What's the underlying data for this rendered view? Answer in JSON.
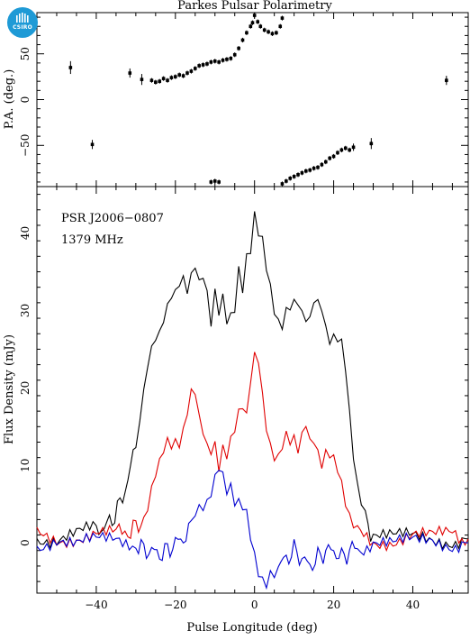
{
  "header": {
    "title": "Parkes Pulsar Polarimetry",
    "logo_text": "CSIRO"
  },
  "colors": {
    "total": "#000000",
    "linear": "#e00000",
    "circular": "#0000d0",
    "logo": "#1e9ad6"
  },
  "chart_data": [
    {
      "type": "scatter",
      "name_role": "position-angle panel",
      "xlabel": "",
      "ylabel": "P.A. (deg.)",
      "xlim": [
        -55,
        54
      ],
      "ylim": [
        -95,
        95
      ],
      "yticks": [
        -50,
        0,
        50
      ],
      "points": [
        [
          -46.5,
          35
        ],
        [
          -41,
          -49
        ],
        [
          -31.5,
          29
        ],
        [
          -28.5,
          22
        ],
        [
          -26,
          21
        ],
        [
          -25,
          19
        ],
        [
          -24,
          20
        ],
        [
          -23,
          23
        ],
        [
          -22,
          21
        ],
        [
          -21,
          24
        ],
        [
          -20,
          25
        ],
        [
          -19,
          27
        ],
        [
          -18,
          26
        ],
        [
          -17,
          29
        ],
        [
          -16,
          31
        ],
        [
          -15,
          34
        ],
        [
          -14,
          37
        ],
        [
          -13,
          38
        ],
        [
          -12,
          39
        ],
        [
          -11,
          41
        ],
        [
          -10,
          42
        ],
        [
          -9,
          41
        ],
        [
          -8,
          43
        ],
        [
          -7,
          44
        ],
        [
          -6,
          45
        ],
        [
          -5,
          49
        ],
        [
          -4,
          56
        ],
        [
          -3,
          65
        ],
        [
          -2,
          73
        ],
        [
          -1,
          80
        ],
        [
          -0.5,
          84
        ],
        [
          0,
          92
        ],
        [
          0.8,
          85
        ],
        [
          1.5,
          80
        ],
        [
          2.5,
          76
        ],
        [
          3.5,
          74
        ],
        [
          4.5,
          72
        ],
        [
          5.5,
          73
        ],
        [
          6.5,
          80
        ],
        [
          7,
          89
        ],
        [
          -11,
          -90
        ],
        [
          -10,
          -89
        ],
        [
          -9,
          -90
        ],
        [
          7,
          -92
        ],
        [
          8,
          -89
        ],
        [
          9,
          -86
        ],
        [
          10,
          -84
        ],
        [
          11,
          -82
        ],
        [
          12,
          -80
        ],
        [
          13,
          -78
        ],
        [
          14,
          -77
        ],
        [
          15,
          -75
        ],
        [
          16,
          -74
        ],
        [
          17,
          -71
        ],
        [
          18,
          -68
        ],
        [
          19,
          -64
        ],
        [
          20,
          -62
        ],
        [
          21,
          -58
        ],
        [
          22,
          -55
        ],
        [
          23,
          -53
        ],
        [
          24,
          -55
        ],
        [
          25,
          -52
        ],
        [
          29.5,
          -48
        ],
        [
          48.5,
          21
        ]
      ],
      "error_bars": [
        [
          -46.5,
          35,
          7
        ],
        [
          -41,
          -49,
          5
        ],
        [
          -31.5,
          29,
          5
        ],
        [
          -28.5,
          22,
          6
        ],
        [
          25,
          -52,
          4
        ],
        [
          29.5,
          -48,
          6
        ],
        [
          48.5,
          21,
          5
        ]
      ]
    },
    {
      "type": "line",
      "name_role": "flux panel",
      "xlabel": "Pulse Longitude (deg)",
      "ylabel": "Flux Density (mJy)",
      "xlim": [
        -55,
        54
      ],
      "ylim": [
        -6.5,
        46
      ],
      "xticks": [
        -40,
        -20,
        0,
        20,
        40
      ],
      "yticks": [
        0,
        10,
        20,
        30,
        40
      ],
      "annotations": [
        "PSR J2006−0807",
        "1379 MHz"
      ],
      "series": [
        {
          "role": "total",
          "x": [
            -55,
            -50,
            -45,
            -40,
            -38,
            -36,
            -34,
            -32,
            -30,
            -29,
            -28,
            -27,
            -26,
            -25,
            -24,
            -23,
            -22,
            -21,
            -20,
            -19,
            -18,
            -17,
            -16,
            -15,
            -14,
            -13,
            -12,
            -11,
            -10,
            -9,
            -8,
            -7,
            -6,
            -5,
            -4,
            -3,
            -2,
            -1,
            0,
            1,
            2,
            3,
            4,
            5,
            6,
            7,
            8,
            9,
            10,
            11,
            12,
            13,
            14,
            15,
            16,
            17,
            18,
            19,
            20,
            21,
            22,
            23,
            24,
            25,
            26,
            27,
            28,
            30,
            35,
            40,
            45,
            50,
            54
          ],
          "y": [
            1,
            0.5,
            1,
            1.5,
            2,
            3,
            5,
            8,
            13,
            16,
            19,
            22,
            25,
            27,
            28,
            29,
            30,
            31,
            32,
            34,
            35,
            33,
            34,
            35,
            33,
            35,
            33,
            29,
            32,
            29,
            31,
            29,
            30,
            31,
            35,
            32,
            36,
            38,
            43,
            41,
            39,
            35,
            32,
            30,
            29,
            29,
            30,
            30,
            30,
            31,
            30,
            30,
            29,
            31,
            30,
            30,
            28,
            27,
            27,
            26,
            25,
            22,
            17,
            12,
            8,
            5,
            3,
            1,
            0.5,
            0.5,
            0.5,
            0.5,
            0.5
          ]
        },
        {
          "role": "linear",
          "x": [
            -55,
            -50,
            -45,
            -40,
            -35,
            -32,
            -30,
            -28,
            -27,
            -26,
            -25,
            -24,
            -23,
            -22,
            -21,
            -20,
            -19,
            -18,
            -17,
            -16,
            -15,
            -14,
            -13,
            -12,
            -11,
            -10,
            -9,
            -8,
            -7,
            -6,
            -5,
            -4,
            -3,
            -2,
            -1,
            0,
            1,
            2,
            3,
            4,
            5,
            6,
            7,
            8,
            9,
            10,
            11,
            12,
            13,
            14,
            15,
            16,
            17,
            18,
            19,
            20,
            21,
            22,
            23,
            24,
            25,
            26,
            30,
            35,
            40,
            45,
            50,
            54
          ],
          "y": [
            1,
            0.5,
            1,
            1.5,
            1,
            1.5,
            2,
            3,
            5,
            8,
            9,
            10,
            11,
            13,
            13,
            14,
            13,
            14,
            16,
            19,
            20,
            17,
            15,
            12,
            11,
            12,
            10,
            13,
            12,
            13,
            14,
            16,
            18,
            17,
            22,
            24,
            23,
            18,
            15,
            13,
            12,
            11,
            12,
            13,
            13,
            14,
            13,
            14,
            15,
            12,
            13,
            12,
            11,
            12,
            11,
            10,
            9,
            8,
            6,
            4,
            2,
            1,
            0.5,
            0.5,
            1,
            0.5,
            1,
            0.5
          ]
        },
        {
          "role": "circular",
          "x": [
            -55,
            -50,
            -45,
            -40,
            -35,
            -30,
            -28,
            -26,
            -24,
            -22,
            -20,
            -18,
            -16,
            -15,
            -14,
            -13,
            -12,
            -11,
            -10,
            -9,
            -8,
            -7,
            -6,
            -5,
            -4,
            -3,
            -2,
            -1,
            0,
            1,
            2,
            3,
            4,
            5,
            6,
            8,
            10,
            12,
            14,
            16,
            18,
            20,
            22,
            24,
            26,
            30,
            35,
            40,
            45,
            50,
            54
          ],
          "y": [
            0,
            0.5,
            -0.5,
            0,
            0.5,
            0,
            -1,
            -1,
            -1.5,
            -1,
            0,
            0.5,
            2,
            3,
            4,
            5,
            6,
            7,
            8,
            9,
            8,
            7,
            8,
            6,
            5,
            4,
            3,
            1,
            -1,
            -3,
            -5,
            -6,
            -5,
            -4,
            -3,
            -2,
            -1,
            -2,
            -3,
            -2,
            -1,
            -1,
            -2,
            -1,
            -0.5,
            0,
            -0.5,
            0,
            0.5,
            0,
            0
          ]
        }
      ]
    }
  ]
}
